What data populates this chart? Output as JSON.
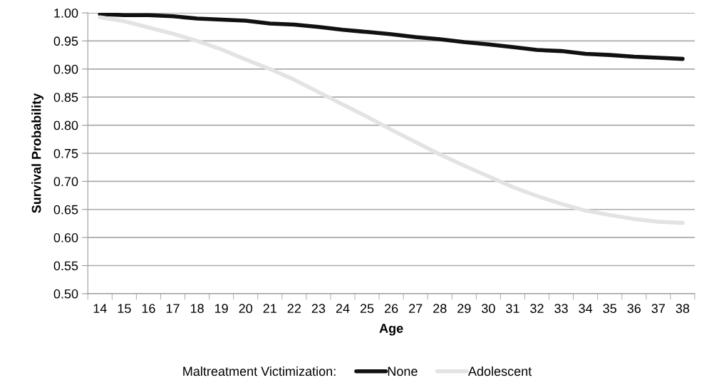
{
  "chart_data": {
    "type": "line",
    "xlabel": "Age",
    "ylabel": "Survival Probability",
    "legend_title": "Maltreatment Victimization:",
    "categories": [
      "14",
      "15",
      "16",
      "17",
      "18",
      "19",
      "20",
      "21",
      "22",
      "23",
      "24",
      "25",
      "26",
      "27",
      "28",
      "29",
      "30",
      "31",
      "32",
      "33",
      "34",
      "35",
      "36",
      "37",
      "38"
    ],
    "series": [
      {
        "name": "None",
        "color": "#111111",
        "values": [
          0.998,
          0.996,
          0.996,
          0.994,
          0.99,
          0.988,
          0.986,
          0.981,
          0.979,
          0.975,
          0.97,
          0.966,
          0.962,
          0.957,
          0.953,
          0.948,
          0.944,
          0.939,
          0.934,
          0.932,
          0.927,
          0.925,
          0.922,
          0.92,
          0.918
        ]
      },
      {
        "name": "Adolescent",
        "color": "#e3e3e3",
        "values": [
          0.992,
          0.985,
          0.974,
          0.963,
          0.95,
          0.935,
          0.917,
          0.9,
          0.881,
          0.859,
          0.837,
          0.815,
          0.792,
          0.77,
          0.748,
          0.728,
          0.709,
          0.69,
          0.674,
          0.66,
          0.648,
          0.64,
          0.633,
          0.628,
          0.626
        ]
      }
    ],
    "ylim": [
      0.5,
      1.0
    ],
    "yticks": [
      {
        "value": 0.5,
        "label": "0.50"
      },
      {
        "value": 0.55,
        "label": "0.55"
      },
      {
        "value": 0.6,
        "label": "0.60"
      },
      {
        "value": 0.65,
        "label": "0.65"
      },
      {
        "value": 0.7,
        "label": "0.70"
      },
      {
        "value": 0.75,
        "label": "0.75"
      },
      {
        "value": 0.8,
        "label": "0.80"
      },
      {
        "value": 0.85,
        "label": "0.85"
      },
      {
        "value": 0.9,
        "label": "0.90"
      },
      {
        "value": 0.95,
        "label": "0.95"
      },
      {
        "value": 1.0,
        "label": "1.00"
      }
    ],
    "grid": "y",
    "legend": "bottom",
    "marker": "none",
    "line_style": "solid"
  }
}
